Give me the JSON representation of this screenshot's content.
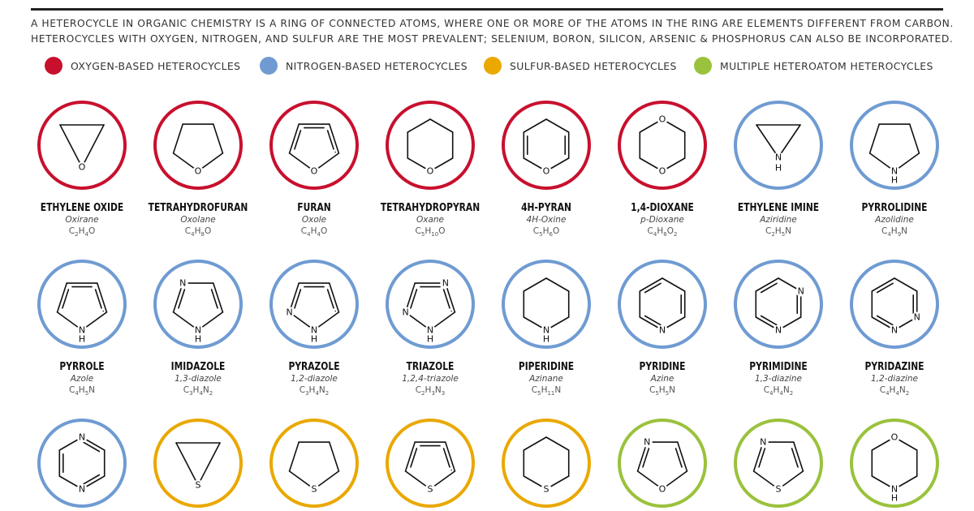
{
  "intro": {
    "line1": "A HETEROCYCLE IN ORGANIC CHEMISTRY IS A RING OF CONNECTED ATOMS, WHERE ONE OR MORE OF THE ATOMS IN THE RING ARE ELEMENTS DIFFERENT FROM CARBON.",
    "line2": "HETEROCYCLES WITH OXYGEN, NITROGEN, AND SULFUR ARE THE MOST PREVALENT; SELENIUM, BORON, SILICON, ARSENIC & PHOSPHORUS CAN ALSO BE INCORPORATED."
  },
  "legend": [
    {
      "label": "OXYGEN-BASED HETEROCYCLES",
      "color": "#c8102e"
    },
    {
      "label": "NITROGEN-BASED HETEROCYCLES",
      "color": "#6f9bd2"
    },
    {
      "label": "SULFUR-BASED HETEROCYCLES",
      "color": "#eaa800"
    },
    {
      "label": "MULTIPLE HETEROATOM HETEROCYCLES",
      "color": "#9ac23c"
    }
  ],
  "compounds": [
    {
      "name": "ETHYLENE OXIDE",
      "alt": "Oxirane",
      "formula": [
        [
          "C",
          "2"
        ],
        [
          "H",
          "4"
        ],
        [
          "O",
          ""
        ]
      ],
      "group": "oxygen",
      "structure": "epoxide",
      "heteroatoms": [
        "O"
      ]
    },
    {
      "name": "TETRAHYDROFURAN",
      "alt": "Oxolane",
      "formula": [
        [
          "C",
          "4"
        ],
        [
          "H",
          "8"
        ],
        [
          "O",
          ""
        ]
      ],
      "group": "oxygen",
      "structure": "pent-sat",
      "heteroatoms": [
        "O"
      ]
    },
    {
      "name": "FURAN",
      "alt": "Oxole",
      "formula": [
        [
          "C",
          "4"
        ],
        [
          "H",
          "4"
        ],
        [
          "O",
          ""
        ]
      ],
      "group": "oxygen",
      "structure": "pent-arom",
      "heteroatoms": [
        "O"
      ]
    },
    {
      "name": "TETRAHYDROPYRAN",
      "alt": "Oxane",
      "formula": [
        [
          "C",
          "5"
        ],
        [
          "H",
          "10"
        ],
        [
          "O",
          ""
        ]
      ],
      "group": "oxygen",
      "structure": "hex-sat",
      "heteroatoms": [
        "O"
      ]
    },
    {
      "name": "4H-PYRAN",
      "alt": "4H-Oxine",
      "formula": [
        [
          "C",
          "5"
        ],
        [
          "H",
          "6"
        ],
        [
          "O",
          ""
        ]
      ],
      "group": "oxygen",
      "structure": "pyran",
      "heteroatoms": [
        "O"
      ]
    },
    {
      "name": "1,4-DIOXANE",
      "alt": "p-Dioxane",
      "formula": [
        [
          "C",
          "4"
        ],
        [
          "H",
          "8"
        ],
        [
          "O",
          "2"
        ]
      ],
      "group": "oxygen",
      "structure": "dioxane",
      "heteroatoms": [
        "O",
        "O"
      ]
    },
    {
      "name": "ETHYLENE IMINE",
      "alt": "Aziridine",
      "formula": [
        [
          "C",
          "2"
        ],
        [
          "H",
          "5"
        ],
        [
          "N",
          ""
        ]
      ],
      "group": "nitrogen",
      "structure": "aziridine",
      "heteroatoms": [
        "N",
        "H"
      ]
    },
    {
      "name": "PYRROLIDINE",
      "alt": "Azolidine",
      "formula": [
        [
          "C",
          "4"
        ],
        [
          "H",
          "9"
        ],
        [
          "N",
          ""
        ]
      ],
      "group": "nitrogen",
      "structure": "pent-sat-nh",
      "heteroatoms": [
        "N",
        "H"
      ]
    },
    {
      "name": "PYRROLE",
      "alt": "Azole",
      "formula": [
        [
          "C",
          "4"
        ],
        [
          "H",
          "5"
        ],
        [
          "N",
          ""
        ]
      ],
      "group": "nitrogen",
      "structure": "pyrrole",
      "heteroatoms": [
        "N",
        "H"
      ]
    },
    {
      "name": "IMIDAZOLE",
      "alt": "1,3-diazole",
      "formula": [
        [
          "C",
          "3"
        ],
        [
          "H",
          "4"
        ],
        [
          "N",
          "2"
        ]
      ],
      "group": "nitrogen",
      "structure": "imidazole",
      "heteroatoms": [
        "N",
        "N",
        "H"
      ]
    },
    {
      "name": "PYRAZOLE",
      "alt": "1,2-diazole",
      "formula": [
        [
          "C",
          "3"
        ],
        [
          "H",
          "4"
        ],
        [
          "N",
          "2"
        ]
      ],
      "group": "nitrogen",
      "structure": "pyrazole",
      "heteroatoms": [
        "N",
        "N",
        "H"
      ]
    },
    {
      "name": "TRIAZOLE",
      "alt": "1,2,4-triazole",
      "formula": [
        [
          "C",
          "2"
        ],
        [
          "H",
          "3"
        ],
        [
          "N",
          "3"
        ]
      ],
      "group": "nitrogen",
      "structure": "triazole",
      "heteroatoms": [
        "N",
        "N",
        "N",
        "H"
      ]
    },
    {
      "name": "PIPERIDINE",
      "alt": "Azinane",
      "formula": [
        [
          "C",
          "5"
        ],
        [
          "H",
          "11"
        ],
        [
          "N",
          ""
        ]
      ],
      "group": "nitrogen",
      "structure": "piperidine",
      "heteroatoms": [
        "N",
        "H"
      ]
    },
    {
      "name": "PYRIDINE",
      "alt": "Azine",
      "formula": [
        [
          "C",
          "5"
        ],
        [
          "H",
          "5"
        ],
        [
          "N",
          ""
        ]
      ],
      "group": "nitrogen",
      "structure": "pyridine",
      "heteroatoms": [
        "N"
      ]
    },
    {
      "name": "PYRIMIDINE",
      "alt": "1,3-diazine",
      "formula": [
        [
          "C",
          "4"
        ],
        [
          "H",
          "4"
        ],
        [
          "N",
          "2"
        ]
      ],
      "group": "nitrogen",
      "structure": "pyrimidine",
      "heteroatoms": [
        "N",
        "N"
      ]
    },
    {
      "name": "PYRIDAZINE",
      "alt": "1,2-diazine",
      "formula": [
        [
          "C",
          "4"
        ],
        [
          "H",
          "4"
        ],
        [
          "N",
          "2"
        ]
      ],
      "group": "nitrogen",
      "structure": "pyridazine",
      "heteroatoms": [
        "N",
        "N"
      ]
    },
    {
      "name": "",
      "alt": "",
      "formula": [],
      "group": "nitrogen",
      "structure": "pyrazine",
      "heteroatoms": [
        "N",
        "N"
      ]
    },
    {
      "name": "",
      "alt": "",
      "formula": [],
      "group": "sulfur",
      "structure": "thiirane",
      "heteroatoms": [
        "S"
      ]
    },
    {
      "name": "",
      "alt": "",
      "formula": [],
      "group": "sulfur",
      "structure": "thiolane",
      "heteroatoms": [
        "S"
      ]
    },
    {
      "name": "",
      "alt": "",
      "formula": [],
      "group": "sulfur",
      "structure": "thiophene",
      "heteroatoms": [
        "S"
      ]
    },
    {
      "name": "",
      "alt": "",
      "formula": [],
      "group": "sulfur",
      "structure": "thiane",
      "heteroatoms": [
        "S"
      ]
    },
    {
      "name": "",
      "alt": "",
      "formula": [],
      "group": "multiple",
      "structure": "oxazole",
      "heteroatoms": [
        "N",
        "O"
      ]
    },
    {
      "name": "",
      "alt": "",
      "formula": [],
      "group": "multiple",
      "structure": "thiazole",
      "heteroatoms": [
        "N",
        "S"
      ]
    },
    {
      "name": "",
      "alt": "",
      "formula": [],
      "group": "multiple",
      "structure": "morpholine",
      "heteroatoms": [
        "O",
        "N",
        "H"
      ]
    }
  ]
}
